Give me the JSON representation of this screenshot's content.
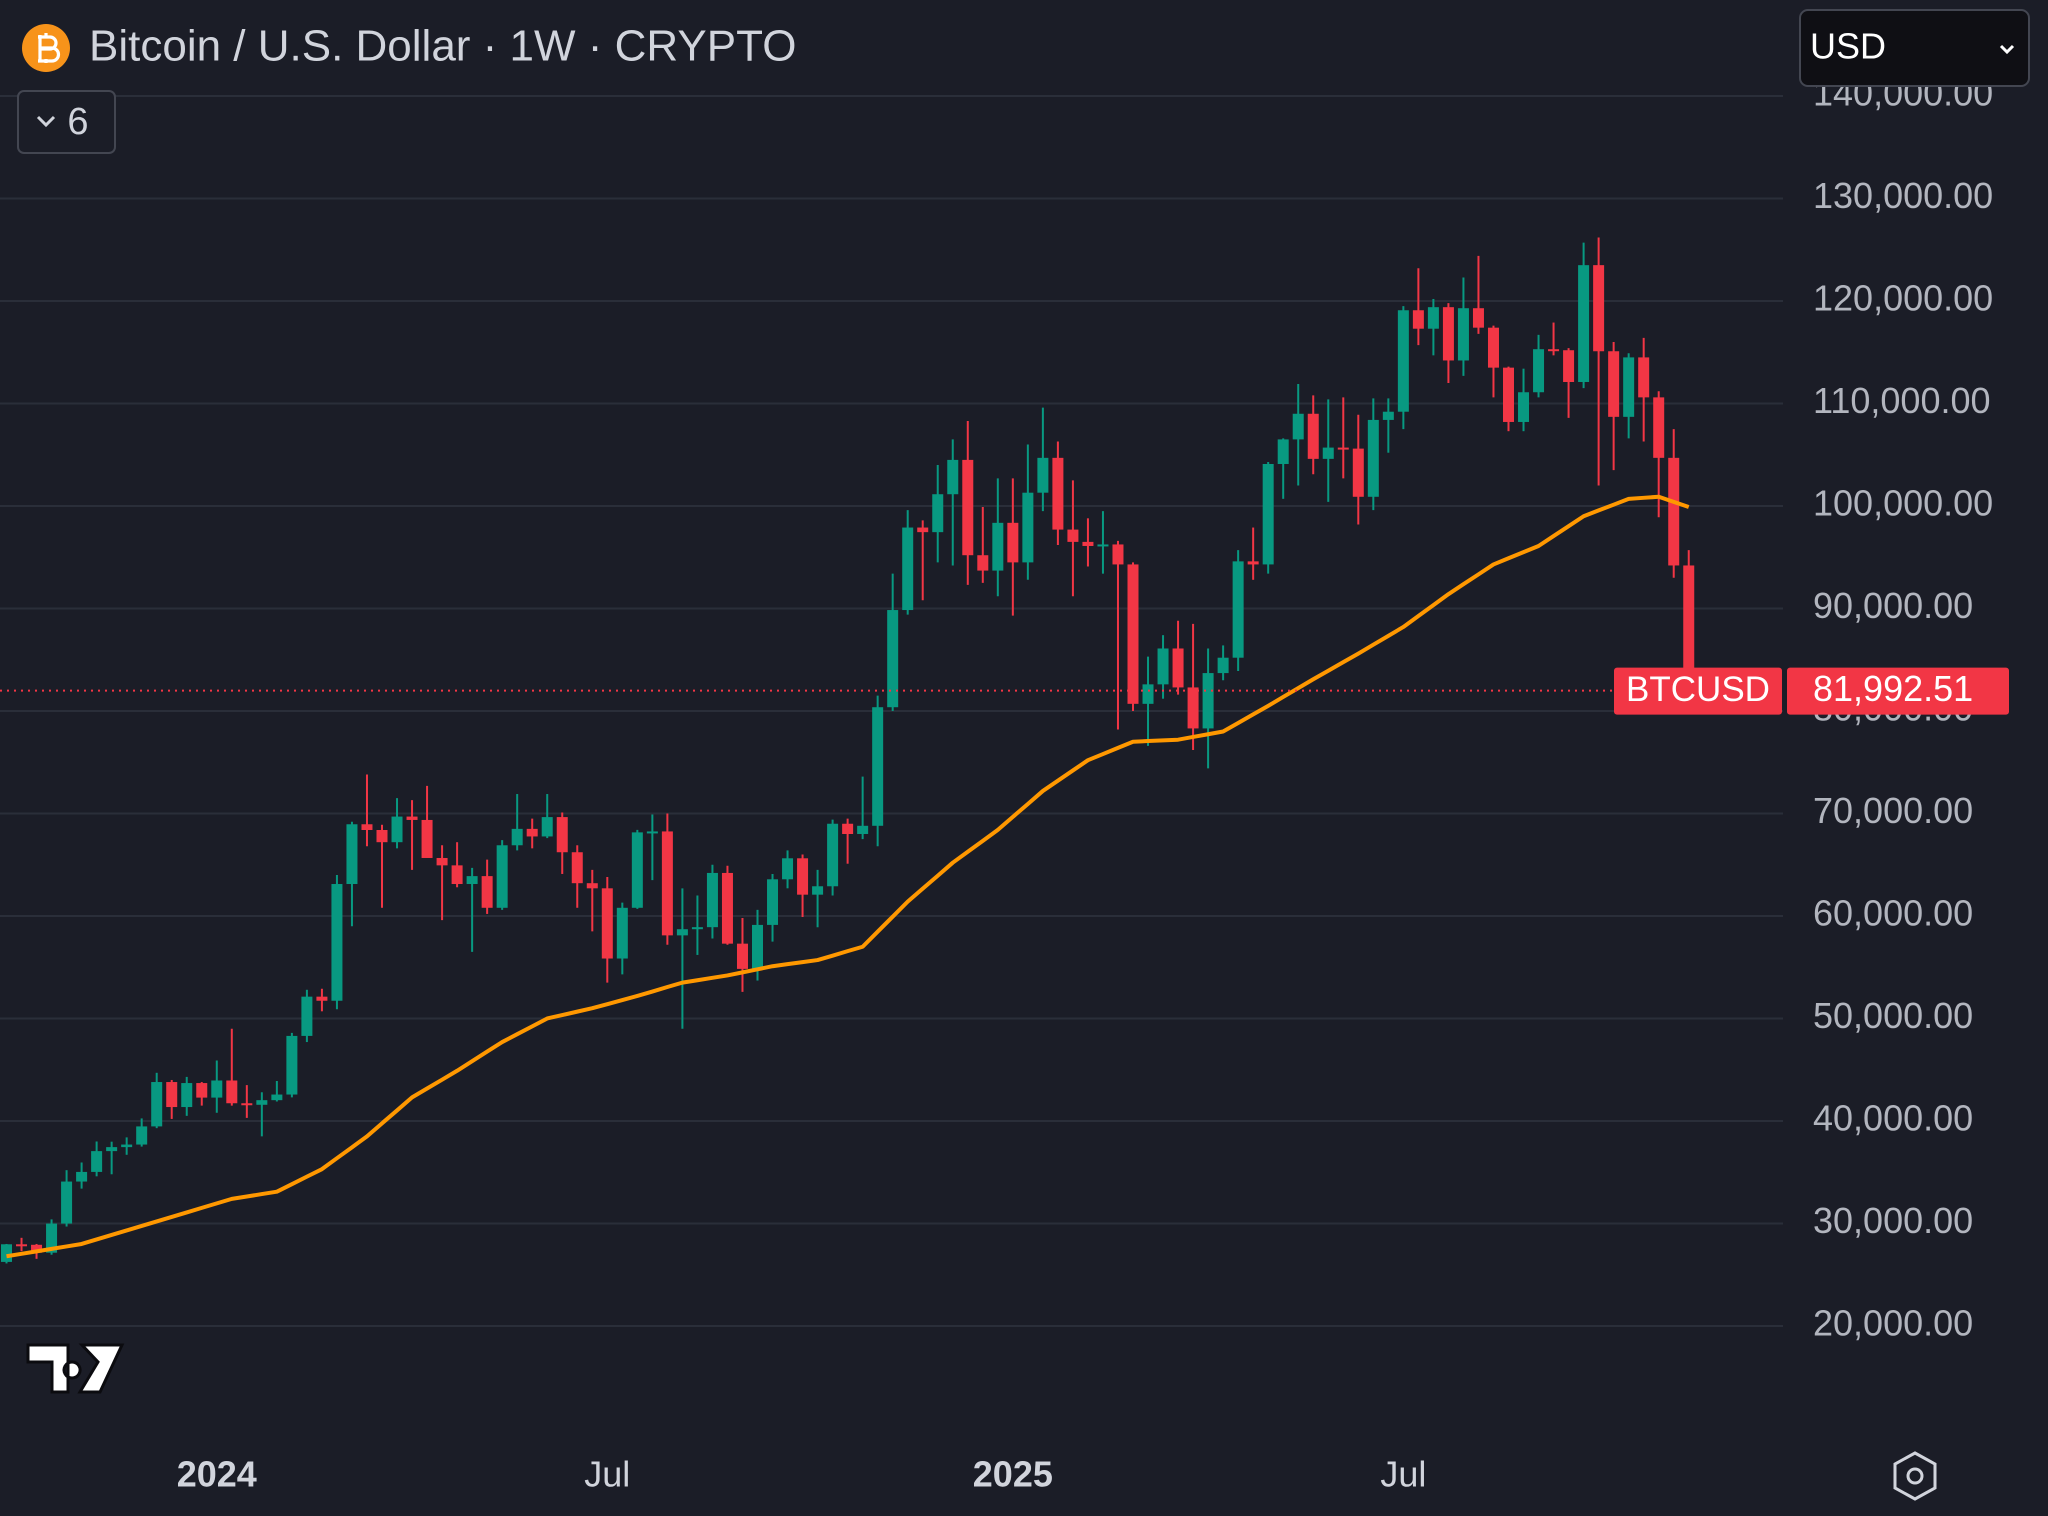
{
  "title": "Bitcoin / U.S. Dollar · 1W · CRYPTO",
  "toolbar": {
    "currency": "USD",
    "indicators": 6
  },
  "chart_data": {
    "type": "candlestick",
    "categories": [
      null,
      null,
      null,
      null,
      null,
      null,
      null,
      null,
      null,
      null,
      null,
      null,
      null,
      null,
      "2024",
      null,
      null,
      null,
      null,
      null,
      null,
      null,
      null,
      null,
      null,
      null,
      null,
      null,
      null,
      null,
      null,
      null,
      null,
      null,
      null,
      null,
      null,
      null,
      null,
      null,
      "Jul",
      null,
      null,
      null,
      null,
      null,
      null,
      null,
      null,
      null,
      null,
      null,
      null,
      null,
      null,
      null,
      null,
      null,
      null,
      null,
      null,
      null,
      null,
      null,
      null,
      null,
      null,
      "2025",
      null,
      null,
      null,
      null,
      null,
      null,
      null,
      null,
      null,
      null,
      null,
      null,
      null,
      null,
      null,
      null,
      null,
      null,
      null,
      null,
      null,
      null,
      null,
      null,
      null,
      "Jul",
      null,
      null,
      null,
      null,
      null,
      null,
      null,
      null,
      null,
      null,
      null,
      null,
      null,
      null,
      null,
      null,
      null,
      null,
      null
    ],
    "ohlc": {
      "up_color": "#089981",
      "down_color": "#f23645",
      "open": [
        26250,
        27970,
        27920,
        27150,
        29990,
        34090,
        35030,
        37060,
        37450,
        37700,
        39470,
        43800,
        41360,
        43700,
        42280,
        43950,
        41730,
        41580,
        42030,
        42580,
        48300,
        52130,
        51730,
        63120,
        68950,
        68390,
        67200,
        69700,
        69370,
        65660,
        64940,
        63120,
        63890,
        60800,
        66900,
        68500,
        67760,
        69650,
        66220,
        63200,
        62700,
        55850,
        60800,
        68160,
        68250,
        58110,
        58710,
        58910,
        64200,
        57300,
        54840,
        59130,
        63580,
        65630,
        62080,
        62900,
        69000,
        68000,
        68800,
        80370,
        89850,
        97900,
        97450,
        101150,
        104500,
        95200,
        93700,
        98360,
        94500,
        101300,
        104700,
        97700,
        96500,
        96100,
        96250,
        94300,
        80700,
        82600,
        86100,
        82300,
        78300,
        83700,
        85200,
        94600,
        94300,
        104100,
        106500,
        109000,
        104600,
        105700,
        105600,
        100900,
        108400,
        109200,
        119100,
        117300,
        119400,
        114200,
        119300,
        117400,
        113500,
        108200,
        111100,
        115300,
        115200,
        112100,
        123500,
        115100,
        108700,
        114500,
        110600,
        104700,
        94200
      ],
      "high": [
        28000,
        28600,
        28000,
        30400,
        35200,
        35950,
        38000,
        37980,
        38400,
        40250,
        44700,
        44000,
        44300,
        43800,
        45900,
        49000,
        43500,
        42800,
        43900,
        48600,
        52800,
        52900,
        64000,
        69200,
        73800,
        68900,
        71500,
        71300,
        72700,
        66900,
        67200,
        64700,
        65500,
        67400,
        71900,
        69500,
        71900,
        70100,
        66900,
        64500,
        63800,
        61300,
        68400,
        69900,
        70000,
        62700,
        62000,
        65000,
        64900,
        59800,
        60600,
        64100,
        66400,
        66000,
        64500,
        69400,
        69500,
        73600,
        81500,
        93400,
        99600,
        98600,
        104000,
        106500,
        108300,
        99900,
        102700,
        102700,
        106000,
        109600,
        106300,
        102500,
        98800,
        99500,
        96600,
        94500,
        85300,
        87400,
        88800,
        88500,
        86100,
        86400,
        95700,
        97900,
        104300,
        106600,
        111900,
        110800,
        110400,
        110600,
        108900,
        110500,
        110500,
        119500,
        123200,
        120200,
        119800,
        122300,
        124400,
        117600,
        113600,
        113400,
        116700,
        117900,
        115400,
        125700,
        126200,
        116000,
        114900,
        116400,
        111200,
        107500,
        95700
      ],
      "low": [
        26100,
        27300,
        26550,
        26950,
        29700,
        33400,
        34600,
        34800,
        36700,
        37500,
        39300,
        40200,
        40500,
        41500,
        40800,
        41500,
        40300,
        38500,
        41900,
        42300,
        47700,
        50700,
        50900,
        59000,
        66800,
        60800,
        66600,
        64500,
        66000,
        59600,
        62800,
        56500,
        60200,
        60600,
        66400,
        66600,
        67600,
        64100,
        60800,
        58500,
        53500,
        54300,
        60700,
        63500,
        57200,
        49000,
        56200,
        57800,
        57200,
        52600,
        53700,
        57500,
        62700,
        59900,
        58900,
        62000,
        65100,
        67500,
        66800,
        80000,
        89400,
        90800,
        94500,
        94200,
        92300,
        92500,
        91200,
        89300,
        92800,
        99500,
        96200,
        91200,
        94100,
        93400,
        78200,
        80000,
        76600,
        81200,
        81600,
        76200,
        74400,
        83000,
        83900,
        92800,
        93400,
        100700,
        102000,
        103100,
        100400,
        102700,
        98200,
        99600,
        105200,
        107500,
        115700,
        114700,
        112000,
        112700,
        116800,
        110600,
        107300,
        107300,
        110600,
        114700,
        108600,
        111500,
        102000,
        103500,
        106600,
        106300,
        98900,
        93000,
        80600
      ],
      "close": [
        27970,
        27920,
        27150,
        29990,
        34090,
        35030,
        37060,
        37450,
        37700,
        39470,
        43800,
        41360,
        43700,
        42280,
        43950,
        41730,
        41580,
        42030,
        42580,
        48300,
        52130,
        51730,
        63120,
        68950,
        68390,
        67200,
        69700,
        69370,
        65660,
        64940,
        63120,
        63890,
        60800,
        66900,
        68500,
        67760,
        69650,
        66220,
        63200,
        62700,
        55850,
        60800,
        68160,
        68250,
        58110,
        58710,
        58910,
        64200,
        57300,
        54840,
        59130,
        63580,
        65630,
        62080,
        62900,
        69000,
        68000,
        68800,
        80370,
        89850,
        97900,
        97450,
        101150,
        104500,
        95200,
        93700,
        98360,
        94500,
        101300,
        104700,
        97700,
        96500,
        96100,
        96250,
        94300,
        80700,
        82600,
        86100,
        82300,
        78300,
        83700,
        85200,
        94600,
        94300,
        104100,
        106500,
        109000,
        104600,
        105700,
        105600,
        100900,
        108400,
        109200,
        119100,
        117300,
        119400,
        114200,
        119300,
        117400,
        113500,
        108200,
        111100,
        115300,
        115200,
        112100,
        123500,
        115100,
        108700,
        114500,
        110600,
        104700,
        94200,
        81992.51
      ]
    },
    "moving_average": {
      "color": "#ff9800",
      "values": [
        26800,
        27040,
        27280,
        27520,
        27760,
        28000,
        28440,
        28880,
        29320,
        29760,
        30200,
        30640,
        31080,
        31520,
        31960,
        32400,
        32630,
        32870,
        33100,
        33830,
        34570,
        35300,
        36370,
        37430,
        38500,
        39770,
        41030,
        42300,
        43170,
        44030,
        44900,
        45830,
        46770,
        47700,
        48470,
        49230,
        50000,
        50330,
        50670,
        51000,
        51400,
        51800,
        52200,
        52630,
        53070,
        53500,
        53730,
        53970,
        54200,
        54500,
        54800,
        55100,
        55300,
        55500,
        55700,
        56130,
        56570,
        57000,
        58470,
        59930,
        61400,
        62670,
        63930,
        65200,
        66270,
        67330,
        68400,
        69670,
        70930,
        72200,
        73200,
        74200,
        75200,
        75800,
        76400,
        77000,
        77070,
        77130,
        77200,
        77470,
        77730,
        78000,
        78830,
        79670,
        80500,
        81370,
        82230,
        83100,
        83930,
        84770,
        85600,
        86470,
        87330,
        88200,
        89270,
        90330,
        91400,
        92370,
        93330,
        94300,
        94900,
        95500,
        96100,
        97070,
        98030,
        99000,
        99570,
        100130,
        100700,
        100800,
        100900,
        100400,
        99900
      ]
    },
    "price_line": {
      "name": "BTCUSD",
      "value": 81992.51,
      "label": "81,992.51",
      "color": "#f23645"
    },
    "ylim": [
      9850,
      149370
    ],
    "yticks": [
      {
        "value": 20000,
        "label": "20,000.00"
      },
      {
        "value": 30000,
        "label": "30,000.00"
      },
      {
        "value": 40000,
        "label": "40,000.00"
      },
      {
        "value": 50000,
        "label": "50,000.00"
      },
      {
        "value": 60000,
        "label": "60,000.00"
      },
      {
        "value": 70000,
        "label": "70,000.00"
      },
      {
        "value": 80000,
        "label": "80,000.00"
      },
      {
        "value": 90000,
        "label": "90,000.00"
      },
      {
        "value": 100000,
        "label": "100,000.00"
      },
      {
        "value": 110000,
        "label": "110,000.00"
      },
      {
        "value": 120000,
        "label": "120,000.00"
      },
      {
        "value": 130000,
        "label": "130,000.00"
      },
      {
        "value": 140000,
        "label": "140,000.00"
      }
    ],
    "grid": true
  }
}
